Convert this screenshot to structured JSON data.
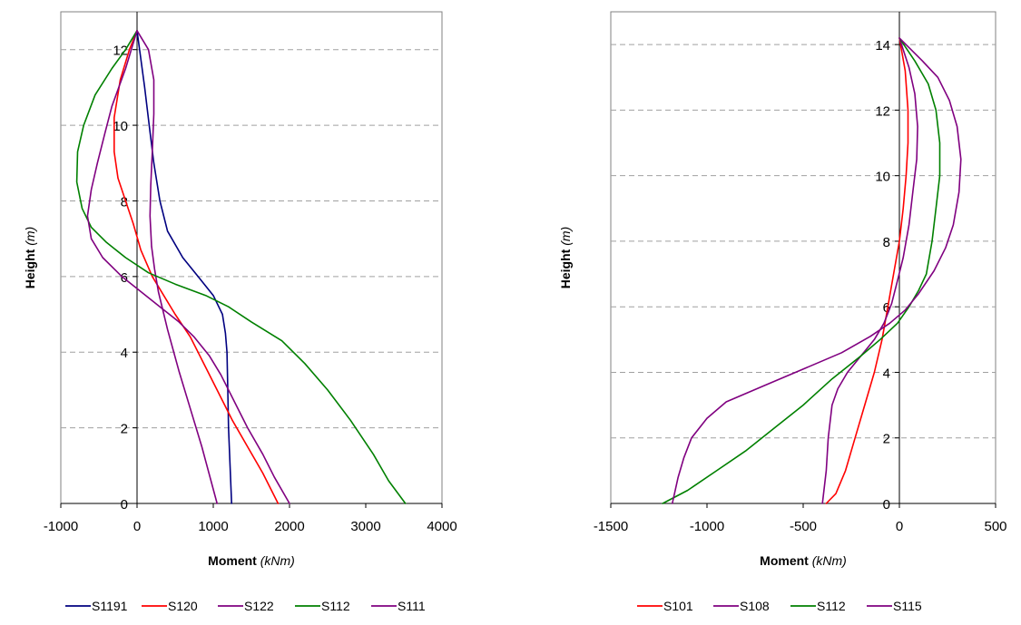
{
  "chart_data": [
    {
      "type": "line",
      "xlabel": "Moment",
      "xunit": "(kNm)",
      "ylabel": "Height",
      "yunit": "(m)",
      "xlim": [
        -1000,
        4000
      ],
      "ylim": [
        0,
        13
      ],
      "xticks": [
        -1000,
        0,
        1000,
        2000,
        3000,
        4000
      ],
      "yticks": [
        0,
        2,
        4,
        6,
        8,
        10,
        12
      ],
      "grid": "horizontal dashed",
      "legend_position": "bottom",
      "series": [
        {
          "name": "S1191",
          "color": "#000080",
          "points": [
            [
              0,
              12.5
            ],
            [
              100,
              11
            ],
            [
              160,
              10
            ],
            [
              220,
              9
            ],
            [
              300,
              8
            ],
            [
              400,
              7.2
            ],
            [
              600,
              6.5
            ],
            [
              800,
              6
            ],
            [
              1000,
              5.5
            ],
            [
              1120,
              5
            ],
            [
              1160,
              4.5
            ],
            [
              1180,
              4
            ],
            [
              1190,
              3
            ],
            [
              1200,
              2
            ],
            [
              1220,
              1
            ],
            [
              1240,
              0
            ]
          ]
        },
        {
          "name": "S120",
          "color": "#ff0000",
          "points": [
            [
              0,
              12.5
            ],
            [
              -100,
              12
            ],
            [
              -220,
              11.2
            ],
            [
              -300,
              10.2
            ],
            [
              -300,
              9.3
            ],
            [
              -250,
              8.6
            ],
            [
              -150,
              8
            ],
            [
              -50,
              7.4
            ],
            [
              50,
              6.7
            ],
            [
              200,
              6
            ],
            [
              350,
              5.5
            ],
            [
              500,
              5
            ],
            [
              700,
              4.4
            ],
            [
              900,
              3.6
            ],
            [
              1050,
              3
            ],
            [
              1250,
              2.2
            ],
            [
              1450,
              1.5
            ],
            [
              1650,
              0.8
            ],
            [
              1850,
              0
            ]
          ]
        },
        {
          "name": "S122",
          "color": "#800080",
          "points": [
            [
              0,
              12.5
            ],
            [
              150,
              12
            ],
            [
              220,
              11.2
            ],
            [
              220,
              10.3
            ],
            [
              200,
              9.3
            ],
            [
              180,
              8.4
            ],
            [
              170,
              7.6
            ],
            [
              190,
              6.8
            ],
            [
              230,
              6.2
            ],
            [
              280,
              5.6
            ],
            [
              400,
              4.6
            ],
            [
              550,
              3.5
            ],
            [
              700,
              2.5
            ],
            [
              850,
              1.5
            ],
            [
              1050,
              0
            ]
          ]
        },
        {
          "name": "S112",
          "color": "#008000",
          "points": [
            [
              0,
              12.5
            ],
            [
              -150,
              12
            ],
            [
              -330,
              11.5
            ],
            [
              -550,
              10.8
            ],
            [
              -700,
              10
            ],
            [
              -780,
              9.3
            ],
            [
              -790,
              8.5
            ],
            [
              -720,
              7.8
            ],
            [
              -600,
              7.3
            ],
            [
              -400,
              6.9
            ],
            [
              -150,
              6.5
            ],
            [
              150,
              6.1
            ],
            [
              500,
              5.8
            ],
            [
              900,
              5.5
            ],
            [
              1200,
              5.2
            ],
            [
              1500,
              4.8
            ],
            [
              1900,
              4.3
            ],
            [
              2200,
              3.7
            ],
            [
              2500,
              3
            ],
            [
              2800,
              2.2
            ],
            [
              3100,
              1.3
            ],
            [
              3300,
              0.6
            ],
            [
              3520,
              0
            ]
          ]
        },
        {
          "name": "S111",
          "color": "#800080",
          "points": [
            [
              0,
              12.5
            ],
            [
              -150,
              11.5
            ],
            [
              -330,
              10.5
            ],
            [
              -420,
              9.8
            ],
            [
              -520,
              9
            ],
            [
              -600,
              8.3
            ],
            [
              -650,
              7.6
            ],
            [
              -600,
              7
            ],
            [
              -450,
              6.5
            ],
            [
              -200,
              6
            ],
            [
              50,
              5.6
            ],
            [
              300,
              5.2
            ],
            [
              550,
              4.8
            ],
            [
              750,
              4.4
            ],
            [
              950,
              3.9
            ],
            [
              1100,
              3.4
            ],
            [
              1300,
              2.6
            ],
            [
              1450,
              2
            ],
            [
              1650,
              1.3
            ],
            [
              1800,
              0.7
            ],
            [
              2000,
              0
            ]
          ]
        }
      ]
    },
    {
      "type": "line",
      "xlabel": "Moment",
      "xunit": "(kNm)",
      "ylabel": "Height",
      "yunit": "(m)",
      "xlim": [
        -1500,
        500
      ],
      "ylim": [
        0,
        15
      ],
      "xticks": [
        -1500,
        -1000,
        -500,
        0,
        500
      ],
      "yticks": [
        0,
        2,
        4,
        6,
        8,
        10,
        12,
        14
      ],
      "grid": "horizontal dashed",
      "legend_position": "bottom",
      "series": [
        {
          "name": "S101",
          "color": "#ff0000",
          "points": [
            [
              0,
              14.2
            ],
            [
              30,
              13.2
            ],
            [
              45,
              12
            ],
            [
              45,
              11
            ],
            [
              35,
              10
            ],
            [
              20,
              9
            ],
            [
              0,
              8
            ],
            [
              -30,
              7
            ],
            [
              -60,
              6
            ],
            [
              -90,
              5
            ],
            [
              -130,
              4
            ],
            [
              -180,
              3
            ],
            [
              -230,
              2
            ],
            [
              -280,
              1
            ],
            [
              -330,
              0.3
            ],
            [
              -380,
              0
            ]
          ]
        },
        {
          "name": "S108",
          "color": "#800080",
          "points": [
            [
              0,
              14.2
            ],
            [
              50,
              13.3
            ],
            [
              80,
              12.5
            ],
            [
              95,
              11.5
            ],
            [
              90,
              10.5
            ],
            [
              70,
              9.5
            ],
            [
              50,
              8.5
            ],
            [
              20,
              7.5
            ],
            [
              -10,
              6.8
            ],
            [
              -40,
              6.1
            ],
            [
              -80,
              5.5
            ],
            [
              -130,
              5
            ],
            [
              -200,
              4.5
            ],
            [
              -270,
              4
            ],
            [
              -320,
              3.5
            ],
            [
              -350,
              3
            ],
            [
              -370,
              2
            ],
            [
              -380,
              1
            ],
            [
              -400,
              0
            ]
          ]
        },
        {
          "name": "S112",
          "color": "#008000",
          "points": [
            [
              0,
              14.2
            ],
            [
              80,
              13.5
            ],
            [
              150,
              12.8
            ],
            [
              190,
              12
            ],
            [
              210,
              11
            ],
            [
              210,
              10
            ],
            [
              190,
              9
            ],
            [
              170,
              8
            ],
            [
              140,
              7
            ],
            [
              100,
              6.5
            ],
            [
              50,
              6
            ],
            [
              -10,
              5.5
            ],
            [
              -100,
              5
            ],
            [
              -200,
              4.5
            ],
            [
              -350,
              3.8
            ],
            [
              -500,
              3
            ],
            [
              -650,
              2.3
            ],
            [
              -800,
              1.6
            ],
            [
              -950,
              1
            ],
            [
              -1100,
              0.4
            ],
            [
              -1230,
              0
            ]
          ]
        },
        {
          "name": "S115",
          "color": "#800080",
          "points": [
            [
              0,
              14.2
            ],
            [
              120,
              13.5
            ],
            [
              200,
              13
            ],
            [
              260,
              12.3
            ],
            [
              300,
              11.5
            ],
            [
              320,
              10.5
            ],
            [
              310,
              9.5
            ],
            [
              280,
              8.5
            ],
            [
              240,
              7.8
            ],
            [
              180,
              7.1
            ],
            [
              100,
              6.4
            ],
            [
              30,
              5.9
            ],
            [
              -50,
              5.5
            ],
            [
              -150,
              5.1
            ],
            [
              -300,
              4.6
            ],
            [
              -500,
              4.1
            ],
            [
              -700,
              3.6
            ],
            [
              -900,
              3.1
            ],
            [
              -1000,
              2.6
            ],
            [
              -1080,
              2
            ],
            [
              -1120,
              1.4
            ],
            [
              -1150,
              0.8
            ],
            [
              -1180,
              0
            ]
          ]
        }
      ]
    }
  ]
}
